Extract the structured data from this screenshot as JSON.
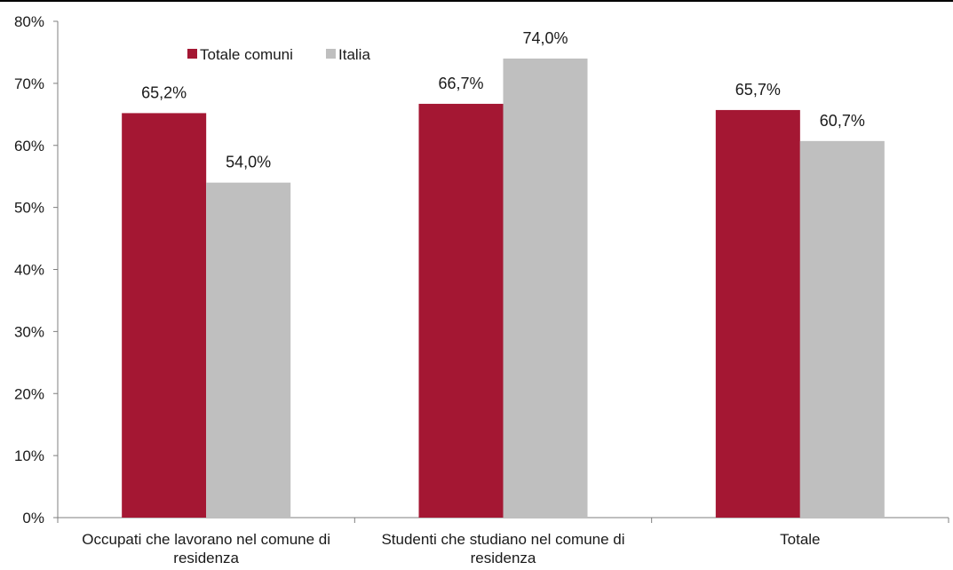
{
  "chart_data": {
    "type": "bar",
    "categories": [
      [
        "Occupati che lavorano nel comune di",
        "residenza"
      ],
      [
        "Studenti che studiano nel comune di",
        "residenza"
      ],
      [
        "Totale"
      ]
    ],
    "series": [
      {
        "name": "Totale comuni",
        "color": "#a41733",
        "values": [
          65.2,
          66.7,
          65.7
        ],
        "labels": [
          "65,2%",
          "66,7%",
          "65,7%"
        ]
      },
      {
        "name": "Italia",
        "color": "#bfbfbf",
        "values": [
          54.0,
          74.0,
          60.7
        ],
        "labels": [
          "54,0%",
          "74,0%",
          "60,7%"
        ]
      }
    ],
    "yticks": [
      0,
      10,
      20,
      30,
      40,
      50,
      60,
      70,
      80
    ],
    "ytick_labels": [
      "0%",
      "10%",
      "20%",
      "30%",
      "40%",
      "50%",
      "60%",
      "70%",
      "80%"
    ],
    "ylim": [
      0,
      80
    ],
    "grid": false,
    "legend_position": "top-left"
  }
}
